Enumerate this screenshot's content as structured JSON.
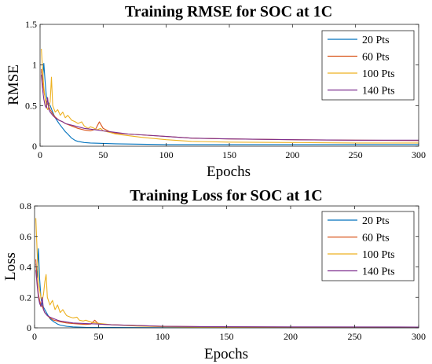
{
  "chart_data": [
    {
      "type": "line",
      "title": "Training RMSE for SOC at 1C",
      "xlabel": "Epochs",
      "ylabel": "RMSE",
      "xlim": [
        0,
        300
      ],
      "ylim": [
        0,
        1.5
      ],
      "xticks": [
        "0",
        "50",
        "100",
        "150",
        "200",
        "250",
        "300"
      ],
      "yticks": [
        "0",
        "0.5",
        "1",
        "1.5"
      ],
      "grid": false,
      "legend_position": "top-right",
      "series": [
        {
          "name": "20 Pts",
          "color": "#0072BD",
          "points": [
            [
              1,
              0.92
            ],
            [
              2,
              0.82
            ],
            [
              3,
              1.02
            ],
            [
              4,
              0.8
            ],
            [
              5,
              0.62
            ],
            [
              6,
              0.55
            ],
            [
              8,
              0.5
            ],
            [
              10,
              0.42
            ],
            [
              12,
              0.35
            ],
            [
              15,
              0.28
            ],
            [
              18,
              0.22
            ],
            [
              20,
              0.18
            ],
            [
              22,
              0.15
            ],
            [
              25,
              0.1
            ],
            [
              28,
              0.07
            ],
            [
              30,
              0.06
            ],
            [
              35,
              0.045
            ],
            [
              40,
              0.04
            ],
            [
              50,
              0.035
            ],
            [
              60,
              0.03
            ],
            [
              80,
              0.025
            ],
            [
              100,
              0.02
            ],
            [
              150,
              0.02
            ],
            [
              200,
              0.02
            ],
            [
              250,
              0.02
            ],
            [
              300,
              0.02
            ]
          ]
        },
        {
          "name": "60 Pts",
          "color": "#D95319",
          "points": [
            [
              1,
              0.95
            ],
            [
              2,
              0.78
            ],
            [
              3,
              0.68
            ],
            [
              4,
              0.6
            ],
            [
              5,
              0.55
            ],
            [
              6,
              0.52
            ],
            [
              8,
              0.45
            ],
            [
              10,
              0.4
            ],
            [
              12,
              0.36
            ],
            [
              15,
              0.32
            ],
            [
              18,
              0.3
            ],
            [
              20,
              0.28
            ],
            [
              25,
              0.25
            ],
            [
              30,
              0.22
            ],
            [
              35,
              0.2
            ],
            [
              40,
              0.19
            ],
            [
              44,
              0.21
            ],
            [
              47,
              0.3
            ],
            [
              50,
              0.22
            ],
            [
              55,
              0.18
            ],
            [
              60,
              0.16
            ],
            [
              70,
              0.15
            ],
            [
              80,
              0.14
            ],
            [
              100,
              0.12
            ],
            [
              120,
              0.1
            ],
            [
              150,
              0.09
            ],
            [
              200,
              0.08
            ],
            [
              250,
              0.075
            ],
            [
              300,
              0.07
            ]
          ]
        },
        {
          "name": "100 Pts",
          "color": "#EDB120",
          "points": [
            [
              1,
              1.2
            ],
            [
              2,
              0.95
            ],
            [
              3,
              0.72
            ],
            [
              4,
              0.6
            ],
            [
              5,
              0.5
            ],
            [
              6,
              0.45
            ],
            [
              7,
              0.48
            ],
            [
              8,
              0.55
            ],
            [
              9,
              0.85
            ],
            [
              10,
              0.5
            ],
            [
              12,
              0.42
            ],
            [
              14,
              0.45
            ],
            [
              16,
              0.38
            ],
            [
              18,
              0.42
            ],
            [
              20,
              0.35
            ],
            [
              22,
              0.38
            ],
            [
              25,
              0.32
            ],
            [
              28,
              0.3
            ],
            [
              30,
              0.28
            ],
            [
              33,
              0.3
            ],
            [
              35,
              0.25
            ],
            [
              38,
              0.22
            ],
            [
              40,
              0.24
            ],
            [
              43,
              0.22
            ],
            [
              45,
              0.2
            ],
            [
              48,
              0.22
            ],
            [
              50,
              0.19
            ],
            [
              55,
              0.17
            ],
            [
              60,
              0.15
            ],
            [
              70,
              0.13
            ],
            [
              80,
              0.11
            ],
            [
              100,
              0.08
            ],
            [
              120,
              0.06
            ],
            [
              150,
              0.05
            ],
            [
              200,
              0.045
            ],
            [
              250,
              0.04
            ],
            [
              300,
              0.04
            ]
          ]
        },
        {
          "name": "140 Pts",
          "color": "#7E2F8E",
          "points": [
            [
              1,
              0.88
            ],
            [
              2,
              0.7
            ],
            [
              3,
              0.58
            ],
            [
              4,
              0.5
            ],
            [
              5,
              0.47
            ],
            [
              6,
              0.6
            ],
            [
              7,
              0.45
            ],
            [
              8,
              0.42
            ],
            [
              10,
              0.38
            ],
            [
              12,
              0.35
            ],
            [
              15,
              0.32
            ],
            [
              18,
              0.3
            ],
            [
              20,
              0.28
            ],
            [
              25,
              0.26
            ],
            [
              30,
              0.24
            ],
            [
              35,
              0.22
            ],
            [
              40,
              0.21
            ],
            [
              45,
              0.2
            ],
            [
              50,
              0.19
            ],
            [
              60,
              0.17
            ],
            [
              70,
              0.15
            ],
            [
              80,
              0.14
            ],
            [
              100,
              0.12
            ],
            [
              120,
              0.1
            ],
            [
              150,
              0.09
            ],
            [
              200,
              0.08
            ],
            [
              250,
              0.075
            ],
            [
              300,
              0.075
            ]
          ]
        }
      ]
    },
    {
      "type": "line",
      "title": "Training Loss for SOC at 1C",
      "xlabel": "Epochs",
      "ylabel": "Loss",
      "xlim": [
        0,
        300
      ],
      "ylim": [
        0,
        0.8
      ],
      "xticks": [
        "0",
        "50",
        "100",
        "150",
        "200",
        "250",
        "300"
      ],
      "yticks": [
        "0",
        "0.2",
        "0.4",
        "0.6",
        "0.8"
      ],
      "grid": false,
      "legend_position": "top-right",
      "series": [
        {
          "name": "20 Pts",
          "color": "#0072BD",
          "points": [
            [
              1,
              0.42
            ],
            [
              2,
              0.33
            ],
            [
              3,
              0.52
            ],
            [
              4,
              0.32
            ],
            [
              5,
              0.2
            ],
            [
              6,
              0.15
            ],
            [
              8,
              0.12
            ],
            [
              10,
              0.09
            ],
            [
              12,
              0.06
            ],
            [
              15,
              0.04
            ],
            [
              18,
              0.025
            ],
            [
              20,
              0.018
            ],
            [
              25,
              0.01
            ],
            [
              30,
              0.006
            ],
            [
              40,
              0.003
            ],
            [
              60,
              0.002
            ],
            [
              100,
              0.001
            ],
            [
              200,
              0.001
            ],
            [
              300,
              0.001
            ]
          ]
        },
        {
          "name": "60 Pts",
          "color": "#D95319",
          "points": [
            [
              1,
              0.45
            ],
            [
              2,
              0.3
            ],
            [
              3,
              0.22
            ],
            [
              4,
              0.18
            ],
            [
              5,
              0.15
            ],
            [
              6,
              0.14
            ],
            [
              8,
              0.1
            ],
            [
              10,
              0.08
            ],
            [
              12,
              0.065
            ],
            [
              15,
              0.05
            ],
            [
              18,
              0.045
            ],
            [
              20,
              0.04
            ],
            [
              25,
              0.032
            ],
            [
              30,
              0.028
            ],
            [
              35,
              0.025
            ],
            [
              40,
              0.022
            ],
            [
              44,
              0.025
            ],
            [
              47,
              0.05
            ],
            [
              50,
              0.025
            ],
            [
              60,
              0.02
            ],
            [
              80,
              0.015
            ],
            [
              100,
              0.01
            ],
            [
              150,
              0.006
            ],
            [
              200,
              0.005
            ],
            [
              300,
              0.004
            ]
          ]
        },
        {
          "name": "100 Pts",
          "color": "#EDB120",
          "points": [
            [
              1,
              0.72
            ],
            [
              2,
              0.5
            ],
            [
              3,
              0.3
            ],
            [
              4,
              0.25
            ],
            [
              5,
              0.2
            ],
            [
              6,
              0.18
            ],
            [
              7,
              0.22
            ],
            [
              8,
              0.3
            ],
            [
              9,
              0.35
            ],
            [
              10,
              0.2
            ],
            [
              12,
              0.15
            ],
            [
              14,
              0.18
            ],
            [
              16,
              0.12
            ],
            [
              18,
              0.15
            ],
            [
              20,
              0.1
            ],
            [
              22,
              0.12
            ],
            [
              25,
              0.08
            ],
            [
              28,
              0.07
            ],
            [
              30,
              0.065
            ],
            [
              33,
              0.07
            ],
            [
              35,
              0.05
            ],
            [
              38,
              0.045
            ],
            [
              40,
              0.05
            ],
            [
              45,
              0.035
            ],
            [
              50,
              0.03
            ],
            [
              60,
              0.02
            ],
            [
              80,
              0.012
            ],
            [
              100,
              0.007
            ],
            [
              150,
              0.003
            ],
            [
              200,
              0.002
            ],
            [
              300,
              0.002
            ]
          ]
        },
        {
          "name": "140 Pts",
          "color": "#7E2F8E",
          "points": [
            [
              1,
              0.38
            ],
            [
              2,
              0.28
            ],
            [
              3,
              0.2
            ],
            [
              4,
              0.16
            ],
            [
              5,
              0.14
            ],
            [
              6,
              0.2
            ],
            [
              7,
              0.12
            ],
            [
              8,
              0.1
            ],
            [
              10,
              0.08
            ],
            [
              12,
              0.07
            ],
            [
              15,
              0.06
            ],
            [
              18,
              0.05
            ],
            [
              20,
              0.045
            ],
            [
              25,
              0.038
            ],
            [
              30,
              0.032
            ],
            [
              35,
              0.03
            ],
            [
              40,
              0.028
            ],
            [
              50,
              0.025
            ],
            [
              60,
              0.02
            ],
            [
              80,
              0.015
            ],
            [
              100,
              0.01
            ],
            [
              150,
              0.007
            ],
            [
              200,
              0.006
            ],
            [
              300,
              0.005
            ]
          ]
        }
      ]
    }
  ]
}
